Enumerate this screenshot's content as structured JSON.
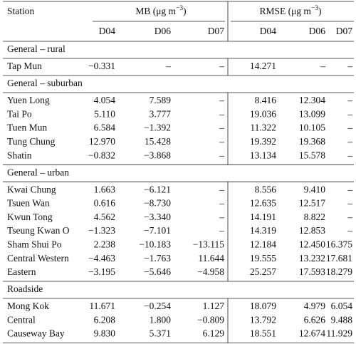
{
  "table": {
    "station_header": "Station",
    "groups": [
      {
        "label": "MB (μg m",
        "exponent": "−3",
        "close": ")"
      },
      {
        "label": "RMSE (μg m",
        "exponent": "−3",
        "close": ")"
      }
    ],
    "subheaders": [
      "D04",
      "D06",
      "D07",
      "D04",
      "D06",
      "D07"
    ],
    "sections": [
      {
        "title": "General – rural",
        "rows": [
          [
            "Tap Mun",
            "−0.331",
            "–",
            "–",
            "14.271",
            "–",
            "–"
          ]
        ]
      },
      {
        "title": "General – suburban",
        "rows": [
          [
            "Yuen Long",
            "4.054",
            "7.589",
            "–",
            "8.416",
            "12.304",
            "–"
          ],
          [
            "Tai Po",
            "5.110",
            "3.777",
            "–",
            "19.036",
            "13.099",
            "–"
          ],
          [
            "Tuen Mun",
            "6.584",
            "−1.392",
            "–",
            "11.322",
            "10.105",
            "–"
          ],
          [
            "Tung Chung",
            "12.970",
            "15.428",
            "–",
            "19.392",
            "19.368",
            "–"
          ],
          [
            "Shatin",
            "−0.832",
            "−3.868",
            "–",
            "13.134",
            "15.578",
            "–"
          ]
        ]
      },
      {
        "title": "General – urban",
        "rows": [
          [
            "Kwai Chung",
            "1.663",
            "−6.121",
            "–",
            "8.556",
            "9.410",
            "–"
          ],
          [
            "Tsuen Wan",
            "0.616",
            "−8.730",
            "–",
            "12.635",
            "12.517",
            "–"
          ],
          [
            "Kwun Tong",
            "4.562",
            "−3.340",
            "–",
            "14.191",
            "8.822",
            "–"
          ],
          [
            "Tseung Kwan O",
            "−1.323",
            "−7.101",
            "–",
            "14.319",
            "12.853",
            "–"
          ],
          [
            "Sham Shui Po",
            "2.238",
            "−10.183",
            "−13.115",
            "12.184",
            "12.450",
            "16.375"
          ],
          [
            "Central Western",
            "−4.463",
            "−1.763",
            "11.644",
            "19.555",
            "13.232",
            "17.681"
          ],
          [
            "Eastern",
            "−3.195",
            "−5.646",
            "−4.958",
            "25.257",
            "17.593",
            "18.279"
          ]
        ]
      },
      {
        "title": "Roadside",
        "rows": [
          [
            "Mong Kok",
            "11.671",
            "−0.254",
            "1.127",
            "18.079",
            "4.979",
            "6.054"
          ],
          [
            "Central",
            "6.208",
            "1.800",
            "−0.809",
            "13.792",
            "6.626",
            "9.488"
          ],
          [
            "Causeway Bay",
            "9.830",
            "5.371",
            "6.129",
            "18.551",
            "12.674",
            "11.929"
          ]
        ]
      }
    ]
  }
}
